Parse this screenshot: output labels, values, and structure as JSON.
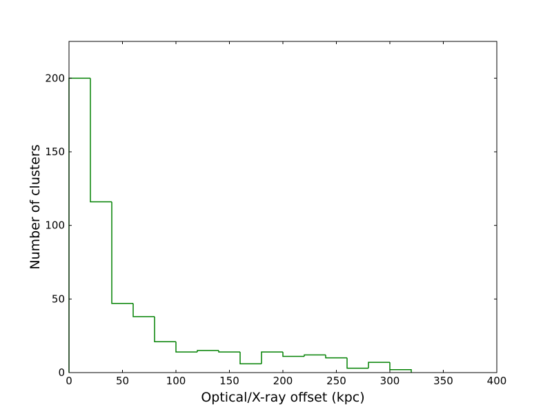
{
  "chart_data": {
    "type": "histogram",
    "x_label": "Optical/X-ray offset (kpc)",
    "y_label": "Number of clusters",
    "bins": [
      0,
      20,
      40,
      60,
      80,
      100,
      120,
      140,
      160,
      180,
      200,
      220,
      240,
      260,
      280,
      300,
      320
    ],
    "values": [
      200,
      116,
      47,
      38,
      21,
      14,
      15,
      14,
      6,
      14,
      11,
      12,
      10,
      3,
      7,
      2
    ],
    "color": "#008000",
    "xlim": [
      0,
      400
    ],
    "ylim": [
      0,
      225
    ],
    "xticks": [
      0,
      50,
      100,
      150,
      200,
      250,
      300,
      350,
      400
    ],
    "yticks": [
      0,
      50,
      100,
      150,
      200
    ]
  }
}
